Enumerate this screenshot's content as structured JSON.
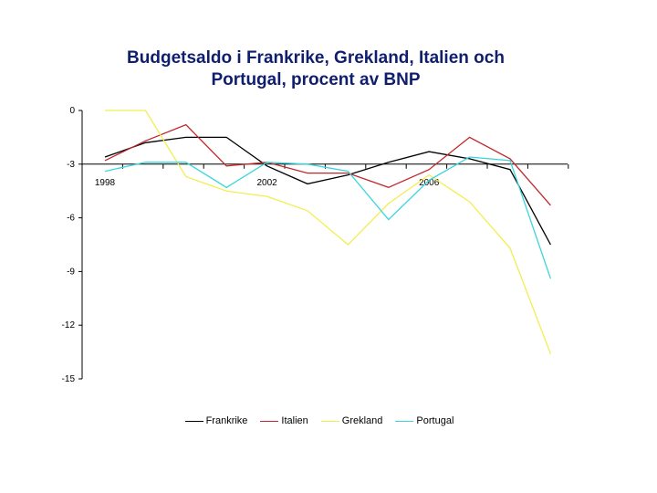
{
  "chart_data": {
    "type": "line",
    "title_line1": "Budgetsaldo i Frankrike, Grekland, Italien och",
    "title_line2": "Portugal, procent av BNP",
    "xlabel": "",
    "ylabel": "",
    "x": [
      1998,
      1999,
      2000,
      2001,
      2002,
      2003,
      2004,
      2005,
      2006,
      2007,
      2008,
      2009
    ],
    "x_tick_labels": [
      "1998",
      "2002",
      "2006"
    ],
    "y_tick_labels": [
      "0",
      "-3",
      "-6",
      "-9",
      "-12",
      "-15"
    ],
    "ylim": [
      -15,
      0
    ],
    "grid": false,
    "legend_position": "bottom",
    "series": [
      {
        "name": "Frankrike",
        "color": "#000000",
        "values": [
          -2.6,
          -1.8,
          -1.5,
          -1.5,
          -3.1,
          -4.1,
          -3.6,
          -2.9,
          -2.3,
          -2.7,
          -3.3,
          -7.5
        ]
      },
      {
        "name": "Italien",
        "color": "#c0282d",
        "values": [
          -2.8,
          -1.7,
          -0.8,
          -3.1,
          -2.9,
          -3.5,
          -3.5,
          -4.3,
          -3.3,
          -1.5,
          -2.7,
          -5.3
        ]
      },
      {
        "name": "Grekland",
        "color": "#f2ee50",
        "values": [
          0.0,
          0.0,
          -3.7,
          -4.5,
          -4.8,
          -5.6,
          -7.5,
          -5.2,
          -3.6,
          -5.1,
          -7.7,
          -13.6
        ]
      },
      {
        "name": "Portugal",
        "color": "#38d6dd",
        "values": [
          -3.4,
          -2.9,
          -2.9,
          -4.3,
          -2.9,
          -3.0,
          -3.4,
          -6.1,
          -3.9,
          -2.6,
          -2.8,
          -9.4
        ]
      }
    ]
  }
}
